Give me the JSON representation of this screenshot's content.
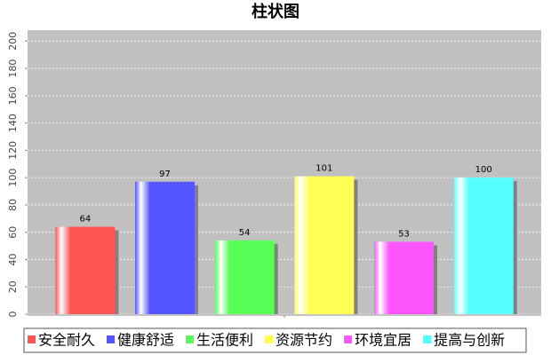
{
  "chart_data": {
    "type": "bar",
    "title": "柱状图",
    "categories": [
      null
    ],
    "series": [
      {
        "name": "安全耐久",
        "color": "#ff5555",
        "values": [
          64
        ]
      },
      {
        "name": "健康舒适",
        "color": "#5555ff",
        "values": [
          97
        ]
      },
      {
        "name": "生活便利",
        "color": "#55ff55",
        "values": [
          54
        ]
      },
      {
        "name": "资源节约",
        "color": "#ffff55",
        "values": [
          101
        ]
      },
      {
        "name": "环境宜居",
        "color": "#ff55ff",
        "values": [
          53
        ]
      },
      {
        "name": "提高与创新",
        "color": "#55ffff",
        "values": [
          100
        ]
      }
    ],
    "ylim": [
      0,
      208
    ],
    "yticks": [
      0,
      20,
      40,
      60,
      80,
      100,
      120,
      140,
      160,
      180,
      200
    ],
    "grid": true
  }
}
